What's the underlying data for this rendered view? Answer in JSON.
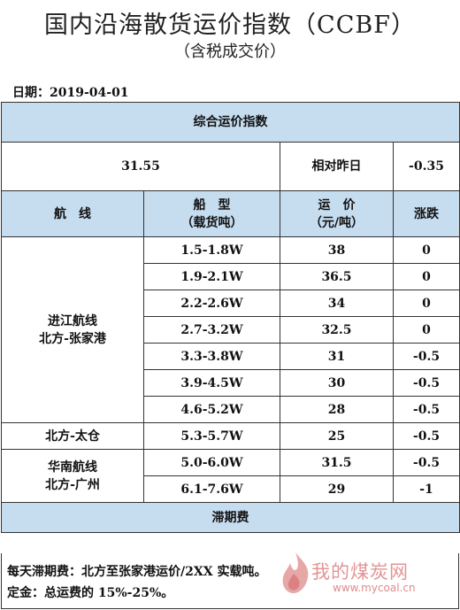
{
  "title": "国内沿海散货运价指数（CCBF）",
  "subtitle": "（含税成交价）",
  "date_label": "日期：2019-04-01",
  "composite": {
    "heading": "综合运价指数",
    "value": "31.55",
    "change_label": "相对昨日",
    "change_value": "-0.35"
  },
  "columns": {
    "route": "航　线",
    "ship_type_line1": "船　型",
    "ship_type_line2": "（载货吨）",
    "rate_line1": "运　价",
    "rate_line2": "（元/吨）",
    "change": "涨跌"
  },
  "routes": [
    {
      "name_line1": "进江航线",
      "name_line2": "北方-张家港",
      "rows": [
        {
          "ship": "1.5-1.8W",
          "rate": "38",
          "change": "0"
        },
        {
          "ship": "1.9-2.1W",
          "rate": "36.5",
          "change": "0"
        },
        {
          "ship": "2.2-2.6W",
          "rate": "34",
          "change": "0"
        },
        {
          "ship": "2.7-3.2W",
          "rate": "32.5",
          "change": "0"
        },
        {
          "ship": "3.3-3.8W",
          "rate": "31",
          "change": "-0.5"
        },
        {
          "ship": "3.9-4.5W",
          "rate": "30",
          "change": "-0.5"
        },
        {
          "ship": "4.6-5.2W",
          "rate": "28",
          "change": "-0.5"
        }
      ]
    },
    {
      "name_line1": "北方-太仓",
      "name_line2": "",
      "rows": [
        {
          "ship": "5.3-5.7W",
          "rate": "25",
          "change": "-0.5"
        }
      ]
    },
    {
      "name_line1": "华南航线",
      "name_line2": "北方-广州",
      "rows": [
        {
          "ship": "5.0-6.0W",
          "rate": "31.5",
          "change": "-0.5"
        },
        {
          "ship": "6.1-7.6W",
          "rate": "29",
          "change": "-1"
        }
      ]
    }
  ],
  "demurrage": {
    "heading": "滞期费",
    "line1": "每天滞期费：北方至张家港运价/2XX 实载吨。",
    "line2": "定金：总运费的 15%-25%。"
  },
  "watermark": {
    "text": "我的煤炭网",
    "url": "www.mycoal.cn",
    "logo": "flame-logo",
    "color": "#c83c3c"
  },
  "colors": {
    "header_blue": "#c6dcef",
    "border": "#333333"
  }
}
